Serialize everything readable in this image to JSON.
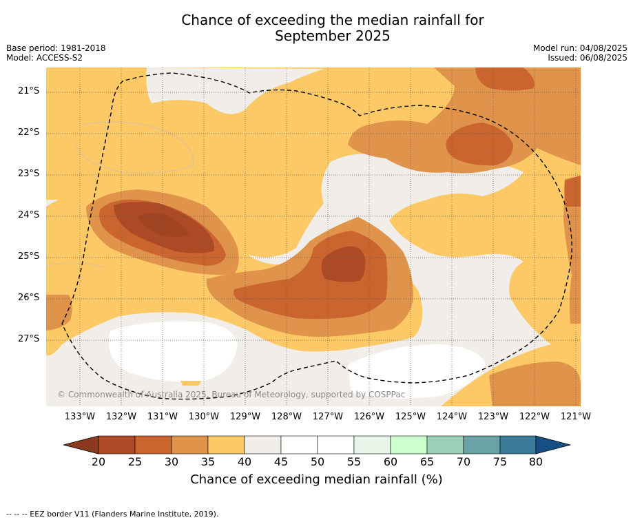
{
  "header": {
    "title_line1": "Chance of exceeding the median rainfall for",
    "title_line2": "September 2025",
    "base_period": "Base period: 1981-2018",
    "model": "Model: ACCESS-S2",
    "model_run": "Model run: 04/08/2025",
    "issued": "Issued: 06/08/2025"
  },
  "map": {
    "lat_labels": [
      "21°S",
      "22°S",
      "23°S",
      "24°S",
      "25°S",
      "26°S",
      "27°S"
    ],
    "lon_labels": [
      "133°W",
      "132°W",
      "131°W",
      "130°W",
      "129°W",
      "128°W",
      "127°W",
      "126°W",
      "125°W",
      "124°W",
      "123°W",
      "122°W",
      "121°W"
    ],
    "copyright": "© Commonwealth of Australia 2025, Bureau of Meteorology, supported by COSPPac",
    "colors": {
      "lt20": "#8b3a1e",
      "c20_25": "#ad4a26",
      "c25_30": "#cb6530",
      "c30_35": "#e0934a",
      "c35_40": "#fdc866",
      "c40_45": "#f1ede8",
      "c45_55": "#ffffff",
      "c55_60": "#e8f5e9",
      "c60_65": "#ccffcc",
      "c65_70": "#9dd0b8",
      "c70_75": "#6aa3a6",
      "c75_80": "#3d7a9a",
      "gt80": "#154f83"
    }
  },
  "colorbar": {
    "ticks": [
      "20",
      "25",
      "30",
      "35",
      "40",
      "45",
      "50",
      "55",
      "60",
      "65",
      "70",
      "75",
      "80"
    ],
    "label": "Chance of exceeding median rainfall (%)"
  },
  "footnote": "--  --  -- EEZ border V11 (Flanders Marine Institute, 2019)."
}
